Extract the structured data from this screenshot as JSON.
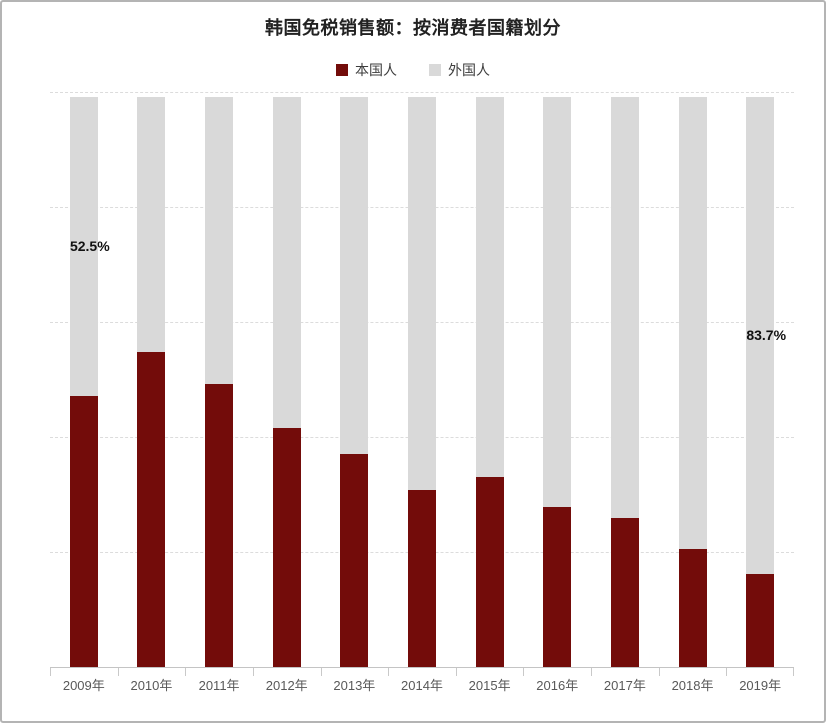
{
  "title": "韩国免税销售额：按消费者国籍划分",
  "legend": {
    "items": [
      {
        "label": "本国人",
        "key": "domestic",
        "color": "#730c0a"
      },
      {
        "label": "外国人",
        "key": "foreign",
        "color": "#d9d9d9"
      }
    ]
  },
  "chart_data": {
    "type": "bar",
    "subtype": "stacked-100-percent",
    "title": "韩国免税销售额：按消费者国籍划分",
    "categories": [
      "2009年",
      "2010年",
      "2011年",
      "2012年",
      "2013年",
      "2014年",
      "2015年",
      "2016年",
      "2017年",
      "2018年",
      "2019年"
    ],
    "series": [
      {
        "name": "本国人",
        "key": "domestic",
        "color": "#730c0a",
        "values": [
          47.5,
          55.3,
          49.6,
          42.0,
          37.4,
          31.0,
          33.3,
          28.0,
          26.1,
          20.7,
          16.3
        ]
      },
      {
        "name": "外国人",
        "key": "foreign",
        "color": "#d9d9d9",
        "values": [
          52.5,
          44.7,
          50.4,
          58.0,
          62.6,
          69.0,
          66.7,
          72.0,
          73.9,
          79.3,
          83.7
        ]
      }
    ],
    "annotations": [
      {
        "text": "52.5%",
        "category": "2009年",
        "series": "外国人",
        "value": 52.5
      },
      {
        "text": "83.7%",
        "category": "2019年",
        "series": "外国人",
        "value": 83.7
      }
    ],
    "ylim": [
      0,
      100
    ],
    "y_unit": "percent",
    "y_axis_labels_visible": false,
    "grid": true,
    "gridline_interval": 20,
    "legend_position": "top"
  }
}
